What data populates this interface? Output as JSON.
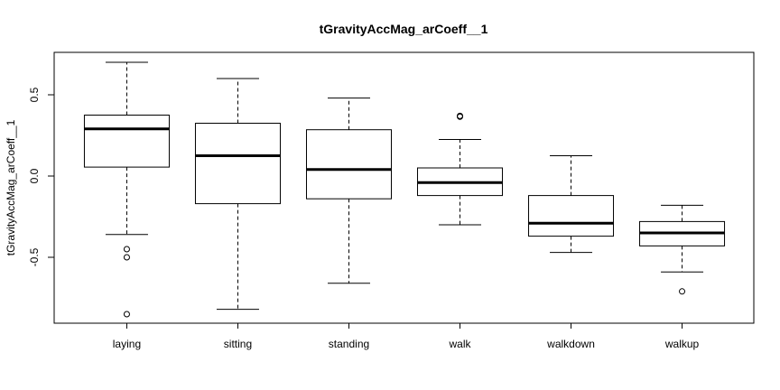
{
  "chart_data": {
    "type": "boxplot",
    "title": "tGravityAccMag_arCoeff__1",
    "xlabel": "",
    "ylabel": "tGravityAccMag_arCoeff__1",
    "ylim": [
      -0.92,
      0.76
    ],
    "y_ticks": [
      -0.5,
      0.0,
      0.5
    ],
    "y_tick_labels": [
      "-0.5",
      "0.0",
      "0.5"
    ],
    "grid": false,
    "legend": "none",
    "categories": [
      "laying",
      "sitting",
      "standing",
      "walk",
      "walkdown",
      "walkup"
    ],
    "boxes": [
      {
        "category": "laying",
        "whisker_low": -0.36,
        "q1": 0.055,
        "median": 0.29,
        "q3": 0.375,
        "whisker_high": 0.7,
        "outliers": [
          -0.45,
          -0.5,
          -0.85
        ]
      },
      {
        "category": "sitting",
        "whisker_low": -0.82,
        "q1": -0.17,
        "median": 0.125,
        "q3": 0.325,
        "whisker_high": 0.6,
        "outliers": []
      },
      {
        "category": "standing",
        "whisker_low": -0.66,
        "q1": -0.14,
        "median": 0.04,
        "q3": 0.285,
        "whisker_high": 0.48,
        "outliers": []
      },
      {
        "category": "walk",
        "whisker_low": -0.3,
        "q1": -0.12,
        "median": -0.04,
        "q3": 0.05,
        "whisker_high": 0.225,
        "outliers": [
          0.365,
          0.37
        ]
      },
      {
        "category": "walkdown",
        "whisker_low": -0.47,
        "q1": -0.37,
        "median": -0.29,
        "q3": -0.12,
        "whisker_high": 0.125,
        "outliers": []
      },
      {
        "category": "walkup",
        "whisker_low": -0.59,
        "q1": -0.43,
        "median": -0.35,
        "q3": -0.28,
        "whisker_high": -0.18,
        "outliers": [
          -0.71
        ]
      }
    ]
  }
}
